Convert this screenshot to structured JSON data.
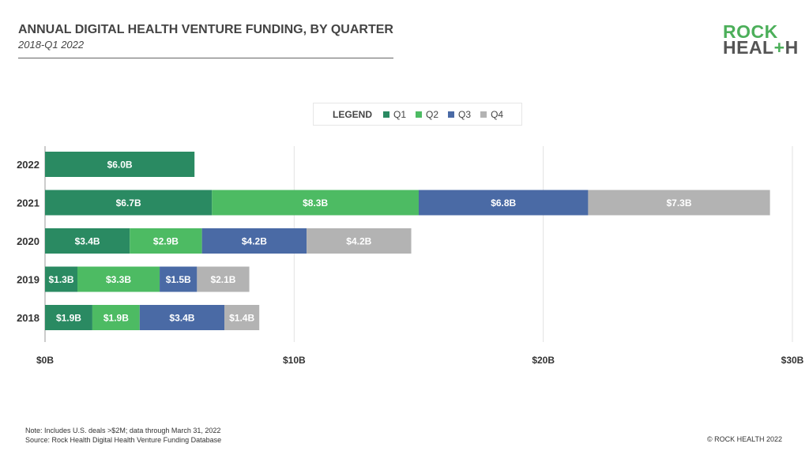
{
  "header": {
    "title": "ANNUAL DIGITAL HEALTH VENTURE FUNDING, BY QUARTER",
    "subtitle": "2018-Q1 2022"
  },
  "logo": {
    "line1": "ROCK",
    "line2": "HEAL+H"
  },
  "footer": {
    "note": "Note: Includes U.S. deals >$2M; data through March 31, 2022",
    "source": "Source: Rock Health Digital Health Venture Funding Database",
    "copyright": "© ROCK HEALTH 2022"
  },
  "chart_data": {
    "type": "bar",
    "orientation": "horizontal",
    "stacked": true,
    "title": "ANNUAL DIGITAL HEALTH VENTURE FUNDING, BY QUARTER",
    "legend_title": "LEGEND",
    "legend_position": "top-center",
    "categories": [
      "2022",
      "2021",
      "2020",
      "2019",
      "2018"
    ],
    "series": [
      {
        "name": "Q1",
        "color": "#2a8a62",
        "values": [
          6.0,
          6.7,
          3.4,
          1.3,
          1.9
        ],
        "labels": [
          "$6.0B",
          "$6.7B",
          "$3.4B",
          "$1.3B",
          "$1.9B"
        ]
      },
      {
        "name": "Q2",
        "color": "#4dbb63",
        "values": [
          null,
          8.3,
          2.9,
          3.3,
          1.9
        ],
        "labels": [
          "",
          "$8.3B",
          "$2.9B",
          "$3.3B",
          "$1.9B"
        ]
      },
      {
        "name": "Q3",
        "color": "#4a6aa5",
        "values": [
          null,
          6.8,
          4.2,
          1.5,
          3.4
        ],
        "labels": [
          "",
          "$6.8B",
          "$4.2B",
          "$1.5B",
          "$3.4B"
        ]
      },
      {
        "name": "Q4",
        "color": "#b3b3b3",
        "values": [
          null,
          7.3,
          4.2,
          2.1,
          1.4
        ],
        "labels": [
          "",
          "$7.3B",
          "$4.2B",
          "$2.1B",
          "$1.4B"
        ]
      }
    ],
    "xlim": [
      0,
      30
    ],
    "xticks": [
      0,
      10,
      20,
      30
    ],
    "xtick_labels": [
      "$0B",
      "$10B",
      "$20B",
      "$30B"
    ],
    "grid": true,
    "xlabel": "",
    "ylabel": ""
  }
}
